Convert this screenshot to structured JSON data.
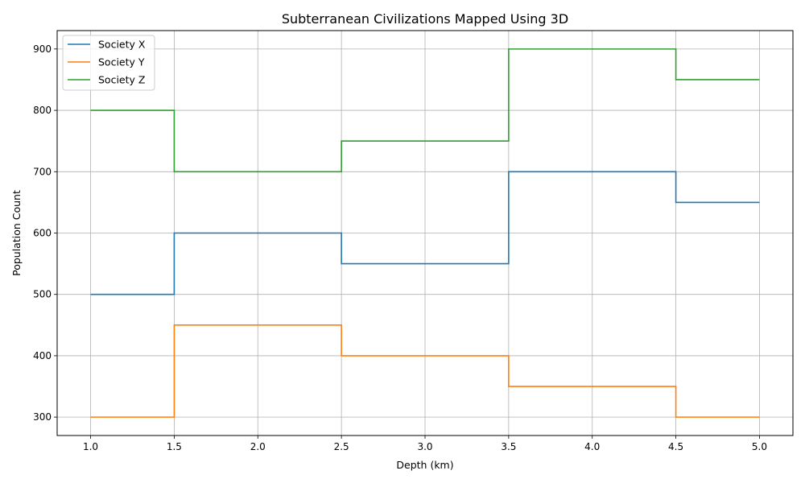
{
  "chart_data": {
    "type": "line",
    "step": "post",
    "title": "Subterranean Civilizations Mapped Using 3D",
    "xlabel": "Depth (km)",
    "ylabel": "Population Count",
    "x": [
      1.0,
      1.5,
      2.5,
      3.5,
      4.5,
      5.0
    ],
    "series": [
      {
        "name": "Society X",
        "color": "#1f77b4",
        "values": [
          500,
          600,
          550,
          700,
          650,
          650
        ]
      },
      {
        "name": "Society Y",
        "color": "#ff7f0e",
        "values": [
          300,
          450,
          400,
          350,
          300,
          300
        ]
      },
      {
        "name": "Society Z",
        "color": "#2ca02c",
        "values": [
          800,
          700,
          750,
          900,
          850,
          850
        ]
      }
    ],
    "xticks": [
      "1.0",
      "1.5",
      "2.0",
      "2.5",
      "3.0",
      "3.5",
      "4.0",
      "4.5",
      "5.0"
    ],
    "yticks": [
      "300",
      "400",
      "500",
      "600",
      "700",
      "800",
      "900"
    ],
    "xlim": [
      0.8,
      5.2
    ],
    "ylim": [
      270,
      930
    ],
    "grid": true,
    "legend": "upper-left"
  }
}
